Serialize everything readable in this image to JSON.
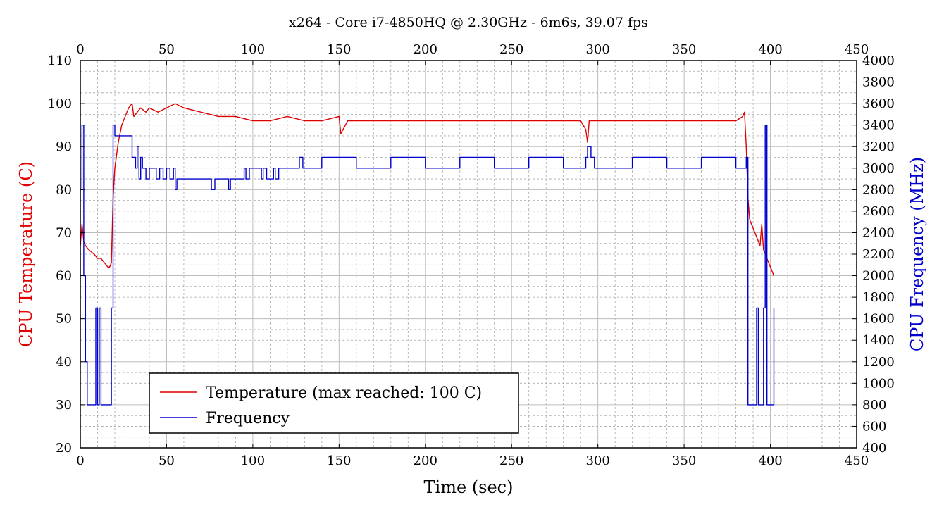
{
  "chart_data": {
    "type": "line",
    "title": "x264 - Core i7-4850HQ @ 2.30GHz - 6m6s, 39.07 fps",
    "xlabel": "Time (sec)",
    "ylabel_left": "CPU Temperature (C)",
    "ylabel_right": "CPU Frequency (MHz)",
    "xlim": [
      0,
      450
    ],
    "x_ticks": [
      0,
      50,
      100,
      150,
      200,
      250,
      300,
      350,
      400,
      450
    ],
    "ylim_left": [
      20,
      110
    ],
    "y_ticks_left": [
      20,
      30,
      40,
      50,
      60,
      70,
      80,
      90,
      100,
      110
    ],
    "ylim_right": [
      400,
      4000
    ],
    "y_ticks_right": [
      400,
      600,
      800,
      1000,
      1200,
      1400,
      1600,
      1800,
      2000,
      2200,
      2400,
      2600,
      2800,
      3000,
      3200,
      3400,
      3600,
      3800,
      4000
    ],
    "grid": true,
    "legend_position": "bottom-left",
    "series": [
      {
        "name": "Temperature (max reached: 100 C)",
        "axis": "left",
        "color": "#e00000",
        "x": [
          0,
          1,
          2,
          3,
          5,
          8,
          10,
          12,
          14,
          16,
          17,
          18,
          19,
          20,
          22,
          24,
          26,
          28,
          30,
          31,
          33,
          35,
          38,
          40,
          45,
          50,
          55,
          60,
          70,
          80,
          90,
          100,
          110,
          120,
          130,
          140,
          150,
          151,
          155,
          170,
          190,
          210,
          230,
          250,
          260,
          270,
          280,
          290,
          293,
          294,
          295,
          300,
          320,
          340,
          360,
          380,
          384,
          385,
          386,
          387,
          388,
          390,
          392,
          394,
          395,
          396,
          398,
          400,
          402
        ],
        "y": [
          67,
          72,
          68,
          67,
          66,
          65,
          64,
          64,
          63,
          62,
          62,
          63,
          78,
          85,
          91,
          95,
          97,
          99,
          100,
          97,
          98,
          99,
          98,
          99,
          98,
          99,
          100,
          99,
          98,
          97,
          97,
          96,
          96,
          97,
          96,
          96,
          97,
          93,
          96,
          96,
          96,
          96,
          96,
          96,
          96,
          96,
          96,
          96,
          94,
          91,
          96,
          96,
          96,
          96,
          96,
          96,
          97,
          98,
          90,
          78,
          73,
          71,
          69,
          67,
          72,
          66,
          64,
          62,
          60
        ]
      },
      {
        "name": "Frequency",
        "axis": "right",
        "color": "#0000cc",
        "step": true,
        "x": [
          0,
          1,
          2,
          3,
          4,
          9,
          10,
          11,
          12,
          17,
          18,
          19,
          20,
          26,
          28,
          30,
          32,
          33,
          34,
          35,
          36,
          38,
          40,
          42,
          44,
          46,
          48,
          50,
          52,
          54,
          55,
          56,
          75,
          76,
          78,
          86,
          87,
          88,
          95,
          96,
          98,
          105,
          106,
          108,
          112,
          113,
          115,
          120,
          126,
          127,
          129,
          140,
          160,
          180,
          200,
          220,
          240,
          260,
          280,
          293,
          294,
          296,
          298,
          320,
          340,
          360,
          380,
          386,
          387,
          389,
          392,
          393,
          395,
          396,
          397,
          398,
          400,
          401,
          402
        ],
        "y": [
          2800,
          3400,
          2000,
          1200,
          800,
          1700,
          800,
          1700,
          800,
          800,
          1700,
          3400,
          3300,
          3300,
          3300,
          3100,
          3000,
          3200,
          2900,
          3100,
          3000,
          2900,
          3000,
          3000,
          2900,
          3000,
          2900,
          3000,
          2900,
          3000,
          2800,
          2900,
          2900,
          2800,
          2900,
          2800,
          2900,
          2900,
          3000,
          2900,
          3000,
          2900,
          3000,
          2900,
          3000,
          2900,
          3000,
          3000,
          3000,
          3100,
          3000,
          3100,
          3000,
          3100,
          3000,
          3100,
          3000,
          3100,
          3000,
          3100,
          3200,
          3100,
          3000,
          3100,
          3000,
          3100,
          3000,
          3100,
          800,
          800,
          1700,
          800,
          800,
          1700,
          3400,
          800,
          800,
          800,
          1700
        ]
      }
    ]
  }
}
